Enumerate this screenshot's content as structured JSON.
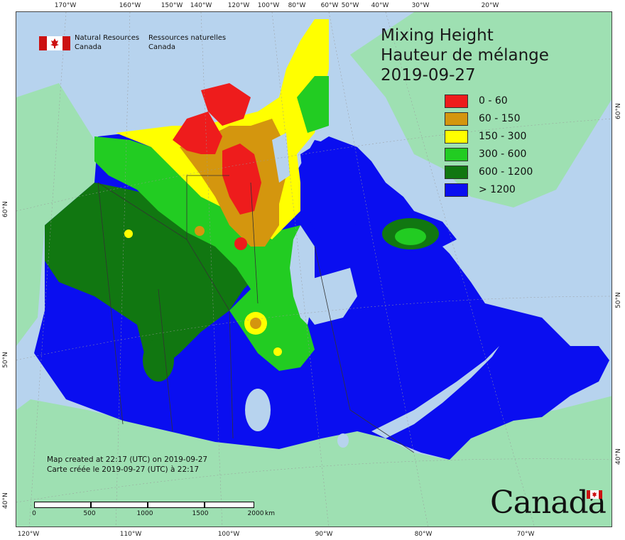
{
  "title": {
    "line1": "Mixing Height",
    "line2": "Hauteur de mélange",
    "date": "2019-09-27"
  },
  "agency": {
    "en_line1": "Natural Resources",
    "en_line2": "Canada",
    "fr_line1": "Ressources naturelles",
    "fr_line2": "Canada"
  },
  "legend": [
    {
      "label": "0 - 60",
      "color": "#ee1c1c"
    },
    {
      "label": "60 - 150",
      "color": "#d4960e"
    },
    {
      "label": "150 - 300",
      "color": "#ffff00"
    },
    {
      "label": "300 - 600",
      "color": "#22cc22"
    },
    {
      "label": "600 - 1200",
      "color": "#117711"
    },
    {
      "label": "> 1200",
      "color": "#0a0ef0"
    }
  ],
  "created": {
    "en": "Map created at 22:17 (UTC) on 2019-09-27",
    "fr": "Carte créée le 2019-09-27 (UTC) à 22:17"
  },
  "scalebar": {
    "ticks": [
      "0",
      "500",
      "1000",
      "1500",
      "2000"
    ],
    "unit": "km"
  },
  "graticule": {
    "top": [
      "170°W",
      "160°W",
      "150°W",
      "140°W",
      "120°W",
      "100°W",
      "80°W",
      "60°W",
      "50°W",
      "40°W",
      "30°W",
      "20°W"
    ],
    "bottom": [
      "120°W",
      "110°W",
      "100°W",
      "90°W",
      "80°W",
      "70°W"
    ],
    "left": [
      "60°N",
      "50°N",
      "40°N"
    ],
    "right": [
      "60°N",
      "50°N",
      "40°N"
    ]
  },
  "wordmark": "Canada",
  "colors": {
    "water": "#b7d3ee",
    "land_outside": "#9ee0b2",
    "boundary": "#333333"
  }
}
